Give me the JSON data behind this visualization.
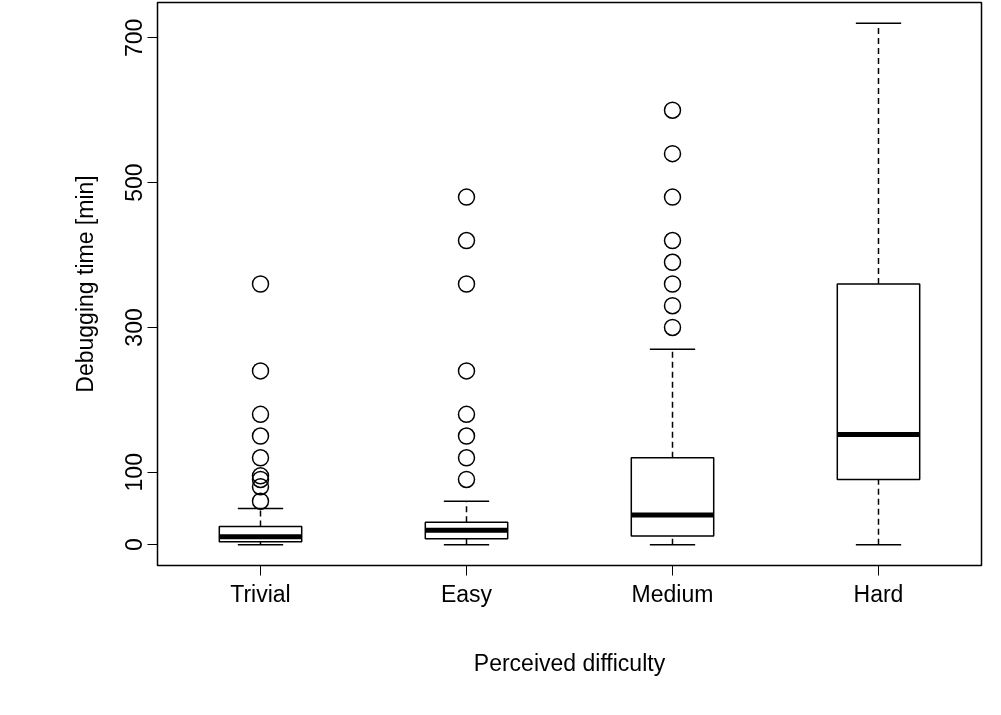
{
  "chart_data": {
    "type": "box",
    "xlabel": "Perceived difficulty",
    "ylabel": "Debugging time [min]",
    "categories": [
      "Trivial",
      "Easy",
      "Medium",
      "Hard"
    ],
    "boxes": [
      {
        "low": 0,
        "q1": 4,
        "median": 11,
        "q3": 25,
        "high": 50,
        "outliers": [
          60,
          80,
          90,
          95,
          120,
          150,
          180,
          240,
          360
        ]
      },
      {
        "low": 0,
        "q1": 8,
        "median": 20,
        "q3": 31,
        "high": 60,
        "outliers": [
          90,
          120,
          150,
          180,
          240,
          360,
          420,
          480
        ]
      },
      {
        "low": 0,
        "q1": 12,
        "median": 41,
        "q3": 120,
        "high": 270,
        "outliers": [
          300,
          330,
          360,
          390,
          420,
          480,
          540,
          600
        ]
      },
      {
        "low": 0,
        "q1": 90,
        "median": 152,
        "q3": 360,
        "high": 720
      }
    ],
    "color": "#000000",
    "ylim": [
      -28.8,
      748.8
    ],
    "yticks": [
      0,
      100,
      300,
      500,
      700
    ],
    "grid": false,
    "marker": "circle"
  }
}
